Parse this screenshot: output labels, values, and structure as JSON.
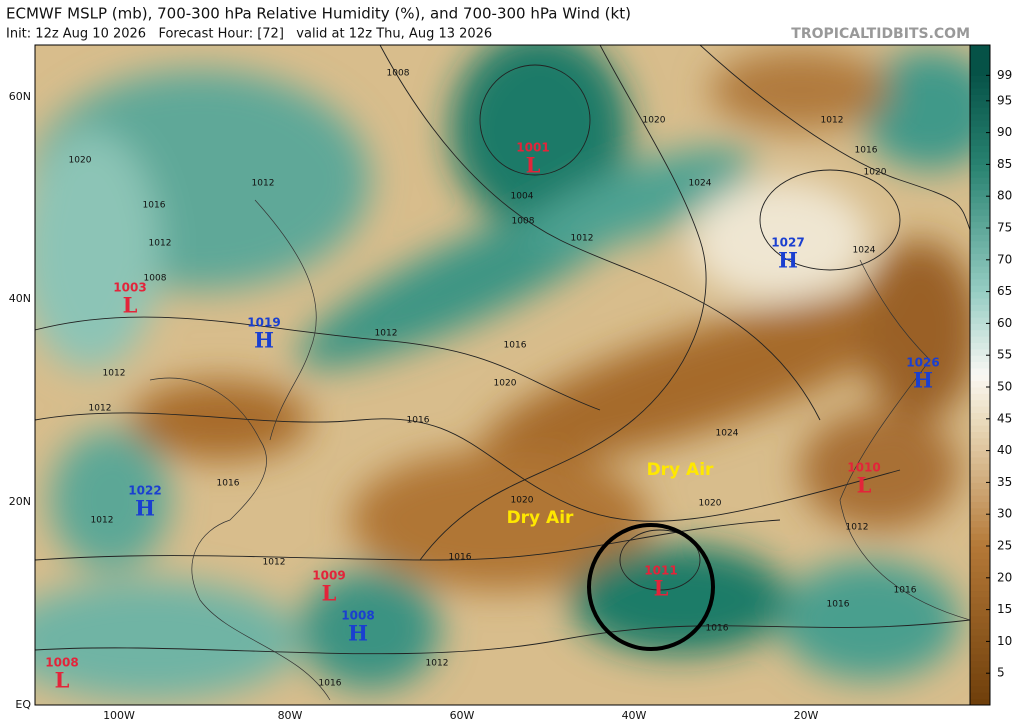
{
  "header": {
    "title": "ECMWF MSLP (mb), 700-300 hPa Relative Humidity (%), and 700-300 hPa Wind (kt)",
    "subtitle": "Init: 12z Aug 10 2026   Forecast Hour: [72]   valid at 12z Thu, Aug 13 2026",
    "source": "TROPICALTIDBITS.COM"
  },
  "map": {
    "pressure_centers": [
      {
        "symbol": "L",
        "value": 1001
      },
      {
        "symbol": "L",
        "value": 1003
      },
      {
        "symbol": "H",
        "value": 1019
      },
      {
        "symbol": "H",
        "value": 1027
      },
      {
        "symbol": "H",
        "value": 1026
      },
      {
        "symbol": "L",
        "value": 1010
      },
      {
        "symbol": "H",
        "value": 1022
      },
      {
        "symbol": "L",
        "value": 1009
      },
      {
        "symbol": "H",
        "value": 1008
      },
      {
        "symbol": "L",
        "value": 1011
      },
      {
        "symbol": "L",
        "value": 1008
      }
    ],
    "isobar_labels": [
      1020,
      1012,
      1016,
      1012,
      1008,
      1012,
      1012,
      1008,
      1004,
      1008,
      1012,
      1020,
      1024,
      1012,
      1016,
      1020,
      1024,
      1012,
      1016,
      1020,
      1016,
      1024,
      1020,
      1020,
      1016,
      1012,
      1016,
      1012,
      1016,
      1016,
      1016,
      1012,
      1012,
      1016
    ],
    "annotations": [
      "Dry Air",
      "Dry Air"
    ],
    "lat_labels": [
      "60N",
      "40N",
      "20N",
      "EQ"
    ],
    "lon_labels": [
      "100W",
      "80W",
      "60W",
      "40W",
      "20W"
    ]
  },
  "colorbar": {
    "ticks": [
      5,
      10,
      15,
      20,
      25,
      30,
      35,
      40,
      45,
      50,
      55,
      60,
      65,
      70,
      75,
      80,
      85,
      90,
      95,
      99
    ]
  }
}
